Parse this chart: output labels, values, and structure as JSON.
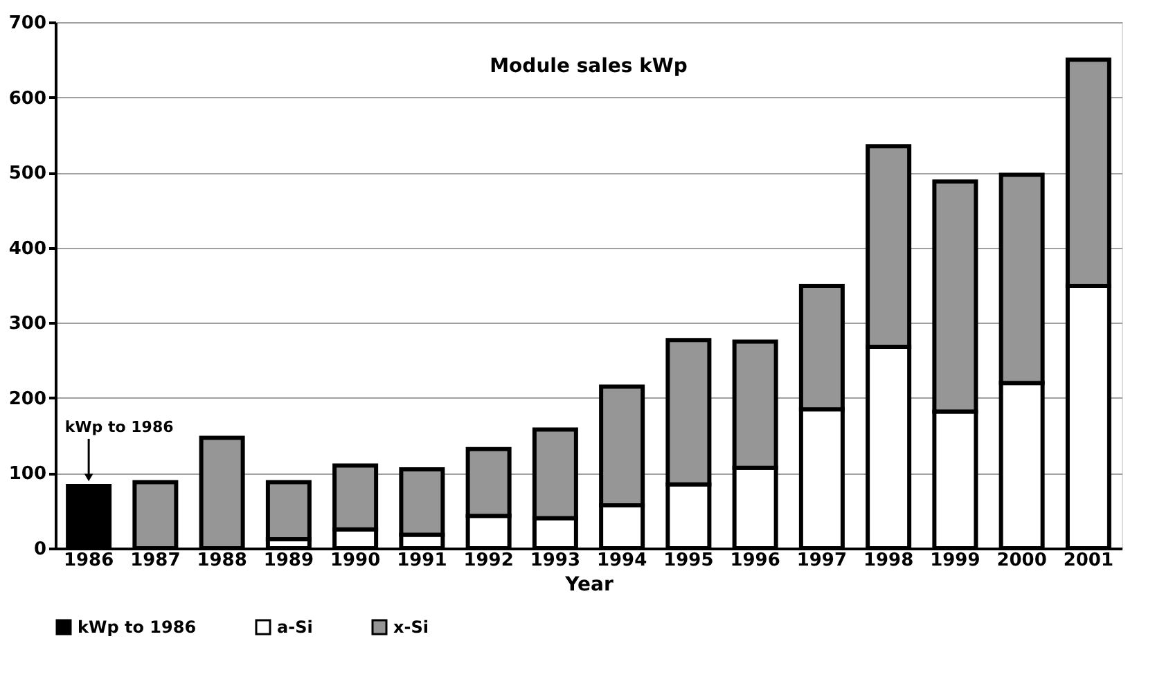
{
  "chart_data": {
    "type": "bar",
    "title": "Module sales kWp",
    "xlabel": "Year",
    "stacked": true,
    "categories": [
      "1986",
      "1987",
      "1988",
      "1989",
      "1990",
      "1991",
      "1992",
      "1993",
      "1994",
      "1995",
      "1996",
      "1997",
      "1998",
      "1999",
      "2000",
      "2001"
    ],
    "series": [
      {
        "name": "kWp to 1986",
        "color": "#000000",
        "values": [
          83,
          null,
          null,
          null,
          null,
          null,
          null,
          null,
          null,
          null,
          null,
          null,
          null,
          null,
          null,
          null
        ]
      },
      {
        "name": "a-Si",
        "color": "#ffffff",
        "values": [
          null,
          null,
          null,
          12,
          25,
          18,
          43,
          40,
          57,
          85,
          107,
          185,
          268,
          182,
          220,
          349
        ]
      },
      {
        "name": "x-Si",
        "color": "#969696",
        "values": [
          null,
          88,
          147,
          76,
          85,
          87,
          89,
          118,
          158,
          192,
          168,
          164,
          267,
          306,
          277,
          301
        ]
      }
    ],
    "ylim": [
      0,
      700
    ],
    "yticks": [
      0,
      100,
      200,
      300,
      400,
      500,
      600,
      700
    ],
    "grid": "y",
    "legend": "bottom",
    "annotations": [
      {
        "text": "kWp to 1986",
        "x": "1986",
        "y": 83
      }
    ]
  }
}
